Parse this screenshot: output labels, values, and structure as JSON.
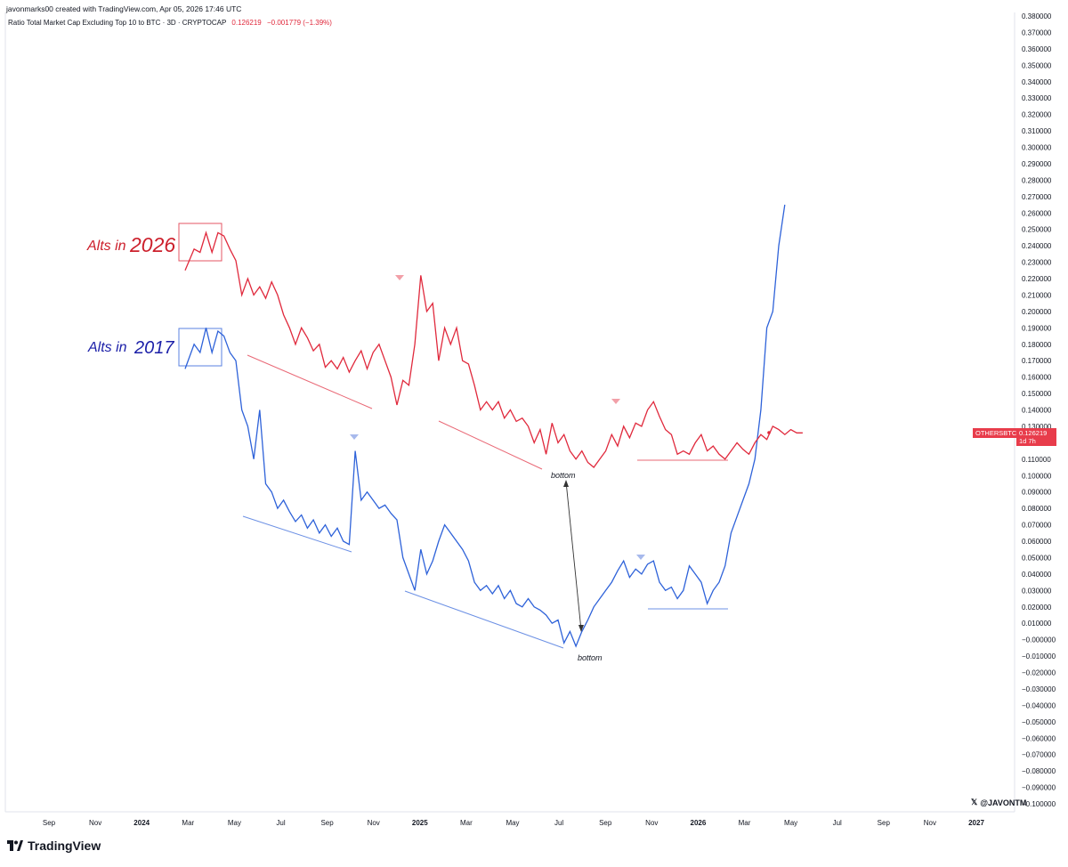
{
  "header": {
    "meta": "javonmarks00 created with TradingView.com, Apr 05, 2026 17:46 UTC",
    "title": "Ratio Total Market Cap Excluding Top 10 to BTC · 3D · CRYPTOCAP",
    "value": "0.126219",
    "change": "−0.001779 (−1.39%)"
  },
  "price_tag": {
    "symbol": "OTHERSBTC",
    "value": "0.126219",
    "countdown": "1d 7h"
  },
  "watermark": "@JAVONTM",
  "brand": "TradingView",
  "colors": {
    "red": "#e0293c",
    "blue": "#2e62d9",
    "annotation_red": "#cc1f2b",
    "annotation_blue": "#1b1fa8",
    "grid_text": "#131722"
  },
  "annotations": {
    "alts_2026_text": "Alts in",
    "alts_2026_year": "2026",
    "alts_2017_text": "Alts in",
    "alts_2017_year": "2017",
    "bottom_label": "bottom"
  },
  "chart_data": {
    "type": "line",
    "y_axis": {
      "ticks": [
        "0.380000",
        "0.370000",
        "0.360000",
        "0.350000",
        "0.340000",
        "0.330000",
        "0.320000",
        "0.310000",
        "0.300000",
        "0.290000",
        "0.280000",
        "0.270000",
        "0.260000",
        "0.250000",
        "0.240000",
        "0.230000",
        "0.220000",
        "0.210000",
        "0.200000",
        "0.190000",
        "0.180000",
        "0.170000",
        "0.160000",
        "0.150000",
        "0.140000",
        "0.130000",
        "0.120000",
        "0.110000",
        "0.100000",
        "0.090000",
        "0.080000",
        "0.070000",
        "0.060000",
        "0.050000",
        "0.040000",
        "0.030000",
        "0.020000",
        "0.010000",
        "−0.000000",
        "−0.010000",
        "−0.020000",
        "−0.030000",
        "−0.040000",
        "−0.050000",
        "−0.060000",
        "−0.070000",
        "−0.080000",
        "−0.090000",
        "−0.100000"
      ],
      "ylim": [
        -0.1,
        0.38
      ]
    },
    "x_axis": {
      "ticks": [
        "Sep",
        "Nov",
        "2024",
        "Mar",
        "May",
        "Jul",
        "Sep",
        "Nov",
        "2025",
        "Mar",
        "May",
        "Jul",
        "Sep",
        "Nov",
        "2026",
        "Mar",
        "May",
        "Jul",
        "Sep",
        "Nov",
        "2027"
      ],
      "bold": [
        "2024",
        "2025",
        "2026",
        "2027"
      ]
    },
    "series": [
      {
        "name": "OTHERSBTC",
        "color": "#e0293c",
        "points": [
          [
            0.0,
            0.225
          ],
          [
            1.2,
            0.238
          ],
          [
            2.0,
            0.236
          ],
          [
            2.8,
            0.248
          ],
          [
            3.6,
            0.236
          ],
          [
            4.4,
            0.248
          ],
          [
            5.2,
            0.246
          ],
          [
            6.0,
            0.238
          ],
          [
            6.8,
            0.231
          ],
          [
            7.6,
            0.21
          ],
          [
            8.4,
            0.22
          ],
          [
            9.2,
            0.21
          ],
          [
            10.0,
            0.215
          ],
          [
            10.8,
            0.208
          ],
          [
            11.6,
            0.218
          ],
          [
            12.4,
            0.21
          ],
          [
            13.2,
            0.198
          ],
          [
            14.0,
            0.19
          ],
          [
            14.8,
            0.18
          ],
          [
            15.6,
            0.19
          ],
          [
            16.4,
            0.184
          ],
          [
            17.2,
            0.176
          ],
          [
            18.0,
            0.18
          ],
          [
            18.8,
            0.166
          ],
          [
            19.6,
            0.17
          ],
          [
            20.4,
            0.165
          ],
          [
            21.2,
            0.172
          ],
          [
            22.0,
            0.163
          ],
          [
            22.8,
            0.17
          ],
          [
            23.6,
            0.176
          ],
          [
            24.4,
            0.165
          ],
          [
            25.2,
            0.175
          ],
          [
            26.0,
            0.18
          ],
          [
            26.8,
            0.17
          ],
          [
            27.6,
            0.16
          ],
          [
            28.4,
            0.143
          ],
          [
            29.2,
            0.158
          ],
          [
            30.0,
            0.155
          ],
          [
            30.8,
            0.18
          ],
          [
            31.6,
            0.222
          ],
          [
            32.4,
            0.2
          ],
          [
            33.2,
            0.205
          ],
          [
            34.0,
            0.17
          ],
          [
            34.8,
            0.19
          ],
          [
            35.6,
            0.18
          ],
          [
            36.4,
            0.19
          ],
          [
            37.2,
            0.17
          ],
          [
            38.0,
            0.168
          ],
          [
            38.8,
            0.155
          ],
          [
            39.6,
            0.14
          ],
          [
            40.4,
            0.145
          ],
          [
            41.2,
            0.14
          ],
          [
            42.0,
            0.145
          ],
          [
            42.8,
            0.135
          ],
          [
            43.6,
            0.14
          ],
          [
            44.4,
            0.133
          ],
          [
            45.2,
            0.135
          ],
          [
            46.0,
            0.13
          ],
          [
            46.8,
            0.12
          ],
          [
            47.6,
            0.128
          ],
          [
            48.4,
            0.113
          ],
          [
            49.2,
            0.132
          ],
          [
            50.0,
            0.12
          ],
          [
            50.8,
            0.125
          ],
          [
            51.6,
            0.115
          ],
          [
            52.4,
            0.11
          ],
          [
            53.2,
            0.115
          ],
          [
            54.0,
            0.108
          ],
          [
            54.8,
            0.105
          ],
          [
            55.6,
            0.11
          ],
          [
            56.4,
            0.115
          ],
          [
            57.2,
            0.125
          ],
          [
            58.0,
            0.118
          ],
          [
            58.8,
            0.13
          ],
          [
            59.6,
            0.123
          ],
          [
            60.4,
            0.132
          ],
          [
            61.2,
            0.13
          ],
          [
            62.0,
            0.14
          ],
          [
            62.8,
            0.145
          ],
          [
            63.6,
            0.136
          ],
          [
            64.4,
            0.128
          ],
          [
            65.2,
            0.125
          ],
          [
            66.0,
            0.113
          ],
          [
            66.8,
            0.115
          ],
          [
            67.6,
            0.113
          ],
          [
            68.4,
            0.12
          ],
          [
            69.2,
            0.125
          ],
          [
            70.0,
            0.115
          ],
          [
            70.8,
            0.118
          ],
          [
            71.6,
            0.113
          ],
          [
            72.4,
            0.11
          ],
          [
            73.2,
            0.115
          ],
          [
            74.0,
            0.12
          ],
          [
            74.8,
            0.116
          ],
          [
            75.6,
            0.113
          ],
          [
            76.4,
            0.12
          ],
          [
            77.2,
            0.125
          ],
          [
            78.0,
            0.122
          ],
          [
            78.8,
            0.13
          ],
          [
            79.6,
            0.128
          ],
          [
            80.4,
            0.125
          ],
          [
            81.2,
            0.128
          ],
          [
            82.0,
            0.126
          ],
          [
            82.8,
            0.126
          ]
        ]
      },
      {
        "name": "",
        "color": "#2e62d9",
        "points": [
          [
            0.0,
            0.165
          ],
          [
            1.2,
            0.18
          ],
          [
            2.0,
            0.175
          ],
          [
            2.8,
            0.19
          ],
          [
            3.6,
            0.175
          ],
          [
            4.4,
            0.188
          ],
          [
            5.2,
            0.185
          ],
          [
            6.0,
            0.175
          ],
          [
            6.8,
            0.17
          ],
          [
            7.6,
            0.14
          ],
          [
            8.4,
            0.13
          ],
          [
            9.2,
            0.11
          ],
          [
            10.0,
            0.14
          ],
          [
            10.8,
            0.095
          ],
          [
            11.6,
            0.09
          ],
          [
            12.4,
            0.08
          ],
          [
            13.2,
            0.085
          ],
          [
            14.0,
            0.078
          ],
          [
            14.8,
            0.072
          ],
          [
            15.6,
            0.076
          ],
          [
            16.4,
            0.068
          ],
          [
            17.2,
            0.073
          ],
          [
            18.0,
            0.065
          ],
          [
            18.8,
            0.07
          ],
          [
            19.6,
            0.063
          ],
          [
            20.4,
            0.068
          ],
          [
            21.2,
            0.06
          ],
          [
            22.0,
            0.058
          ],
          [
            22.8,
            0.115
          ],
          [
            23.6,
            0.085
          ],
          [
            24.4,
            0.09
          ],
          [
            25.2,
            0.085
          ],
          [
            26.0,
            0.08
          ],
          [
            26.8,
            0.082
          ],
          [
            27.6,
            0.077
          ],
          [
            28.4,
            0.073
          ],
          [
            29.2,
            0.05
          ],
          [
            30.0,
            0.04
          ],
          [
            30.8,
            0.03
          ],
          [
            31.6,
            0.055
          ],
          [
            32.4,
            0.04
          ],
          [
            33.2,
            0.048
          ],
          [
            34.0,
            0.06
          ],
          [
            34.8,
            0.07
          ],
          [
            35.6,
            0.065
          ],
          [
            36.4,
            0.06
          ],
          [
            37.2,
            0.055
          ],
          [
            38.0,
            0.048
          ],
          [
            38.8,
            0.035
          ],
          [
            39.6,
            0.03
          ],
          [
            40.4,
            0.033
          ],
          [
            41.2,
            0.028
          ],
          [
            42.0,
            0.033
          ],
          [
            42.8,
            0.025
          ],
          [
            43.6,
            0.03
          ],
          [
            44.4,
            0.022
          ],
          [
            45.2,
            0.02
          ],
          [
            46.0,
            0.025
          ],
          [
            46.8,
            0.02
          ],
          [
            47.6,
            0.018
          ],
          [
            48.4,
            0.015
          ],
          [
            49.2,
            0.01
          ],
          [
            50.0,
            0.012
          ],
          [
            50.8,
            -0.002
          ],
          [
            51.6,
            0.005
          ],
          [
            52.4,
            -0.004
          ],
          [
            53.2,
            0.005
          ],
          [
            54.0,
            0.012
          ],
          [
            54.8,
            0.02
          ],
          [
            55.6,
            0.025
          ],
          [
            56.4,
            0.03
          ],
          [
            57.2,
            0.035
          ],
          [
            58.0,
            0.042
          ],
          [
            58.8,
            0.048
          ],
          [
            59.6,
            0.038
          ],
          [
            60.4,
            0.043
          ],
          [
            61.2,
            0.04
          ],
          [
            62.0,
            0.046
          ],
          [
            62.8,
            0.048
          ],
          [
            63.6,
            0.035
          ],
          [
            64.4,
            0.03
          ],
          [
            65.2,
            0.032
          ],
          [
            66.0,
            0.025
          ],
          [
            66.8,
            0.03
          ],
          [
            67.6,
            0.045
          ],
          [
            68.4,
            0.04
          ],
          [
            69.2,
            0.035
          ],
          [
            70.0,
            0.022
          ],
          [
            70.8,
            0.03
          ],
          [
            71.6,
            0.035
          ],
          [
            72.4,
            0.045
          ],
          [
            73.2,
            0.065
          ],
          [
            74.0,
            0.075
          ],
          [
            74.8,
            0.085
          ],
          [
            75.6,
            0.095
          ],
          [
            76.4,
            0.11
          ],
          [
            77.2,
            0.14
          ],
          [
            78.0,
            0.19
          ],
          [
            78.8,
            0.2
          ],
          [
            79.6,
            0.24
          ],
          [
            80.4,
            0.265
          ]
        ]
      }
    ]
  }
}
